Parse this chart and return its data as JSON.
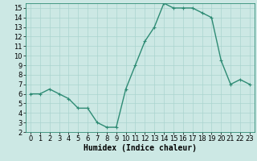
{
  "x": [
    0,
    1,
    2,
    3,
    4,
    5,
    6,
    7,
    8,
    9,
    10,
    11,
    12,
    13,
    14,
    15,
    16,
    17,
    18,
    19,
    20,
    21,
    22,
    23
  ],
  "y": [
    6,
    6,
    6.5,
    6,
    5.5,
    4.5,
    4.5,
    3,
    2.5,
    2.5,
    6.5,
    9,
    11.5,
    13,
    15.5,
    15,
    15,
    15,
    14.5,
    14,
    9.5,
    7,
    7.5,
    7
  ],
  "line_color": "#2e8b74",
  "marker": "+",
  "markersize": 3,
  "linewidth": 1.0,
  "bg_color": "#cce8e4",
  "grid_color": "#aad4cf",
  "xlabel": "Humidex (Indice chaleur)",
  "xlabel_fontsize": 7,
  "tick_fontsize": 6,
  "ylim": [
    2,
    15.5
  ],
  "xlim": [
    -0.5,
    23.5
  ],
  "yticks": [
    2,
    3,
    4,
    5,
    6,
    7,
    8,
    9,
    10,
    11,
    12,
    13,
    14,
    15
  ],
  "xticks": [
    0,
    1,
    2,
    3,
    4,
    5,
    6,
    7,
    8,
    9,
    10,
    11,
    12,
    13,
    14,
    15,
    16,
    17,
    18,
    19,
    20,
    21,
    22,
    23
  ]
}
